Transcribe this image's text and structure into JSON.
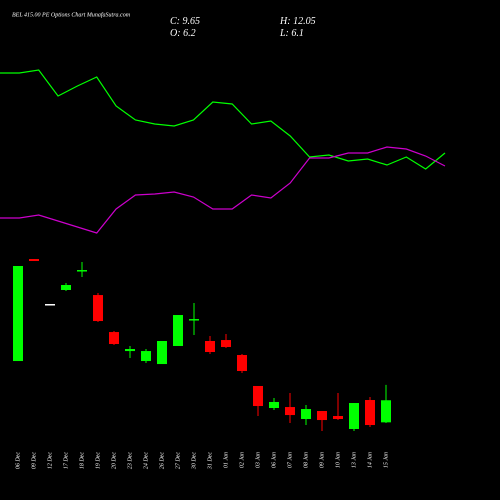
{
  "chart_data": [
    {
      "type": "line",
      "ylim": [
        0,
        100
      ],
      "series": [
        {
          "color": "#00ff00",
          "values": [
            93.5,
            93.5,
            95,
            82,
            87,
            91.5,
            77,
            70,
            68,
            67,
            70,
            79,
            78,
            68,
            69.5,
            62,
            51.5,
            52.5,
            49.5,
            50.5,
            47.5,
            51.5,
            45.5,
            53.5
          ]
        },
        {
          "color": "#cc00cc",
          "values": [
            21,
            21,
            22.5,
            19.5,
            16.5,
            13.5,
            25.5,
            32.5,
            33,
            34,
            31.5,
            25.5,
            25.5,
            32.5,
            31,
            38.5,
            51,
            51,
            53.5,
            53.5,
            56.5,
            55.5,
            52,
            47
          ]
        }
      ]
    },
    {
      "type": "candlestick",
      "title": "BEL 415.00 PE Options Chart MunafaSutra.com",
      "readout": [
        {
          "label": "C:",
          "value": 9.65
        },
        {
          "label": "H:",
          "value": 12.05
        },
        {
          "label": "O:",
          "value": 6.2
        },
        {
          "label": "L:",
          "value": 6.1
        }
      ],
      "up_color": "#00ff00",
      "down_color": "#ff0000",
      "ylim": [
        3.44,
        33.13
      ],
      "categories": [
        "06 Dec",
        "09 Dec",
        "12 Dec",
        "17 Dec",
        "18 Dec",
        "19 Dec",
        "20 Dec",
        "23 Dec",
        "24 Dec",
        "26 Dec",
        "27 Dec",
        "30 Dec",
        "31 Dec",
        "01 Jan",
        "02 Jan",
        "03 Jan",
        "06 Jan",
        "07 Jan",
        "08 Jan",
        "09 Jan",
        "10 Jan",
        "13 Jan",
        "14 Jan",
        "15 Jan"
      ],
      "open": [
        15.78,
        31.72,
        24.69,
        26.88,
        29.84,
        26.09,
        20.31,
        17.34,
        15.78,
        15.31,
        18.13,
        22.19,
        18.91,
        19.06,
        16.72,
        11.88,
        8.44,
        8.59,
        6.72,
        7.97,
        7.19,
        5.16,
        9.69,
        6.2
      ],
      "high": [
        30.63,
        31.72,
        24.69,
        27.97,
        31.25,
        26.41,
        20.47,
        18.13,
        17.66,
        18.91,
        22.97,
        24.84,
        19.69,
        20.0,
        16.88,
        11.88,
        10.0,
        10.78,
        8.91,
        7.97,
        10.78,
        9.22,
        10.16,
        12.05
      ],
      "low": [
        15.78,
        31.41,
        24.69,
        26.72,
        28.91,
        21.88,
        18.28,
        16.25,
        15.47,
        15.31,
        18.13,
        19.84,
        16.88,
        17.81,
        13.91,
        7.19,
        8.13,
        6.09,
        5.78,
        4.84,
        6.56,
        4.84,
        5.47,
        6.1
      ],
      "close": [
        30.63,
        31.41,
        24.69,
        27.66,
        30.0,
        22.03,
        18.44,
        17.66,
        17.34,
        18.91,
        22.97,
        22.34,
        17.19,
        17.97,
        14.22,
        8.75,
        9.38,
        7.34,
        8.28,
        6.56,
        6.72,
        9.22,
        5.78,
        9.65
      ]
    }
  ]
}
